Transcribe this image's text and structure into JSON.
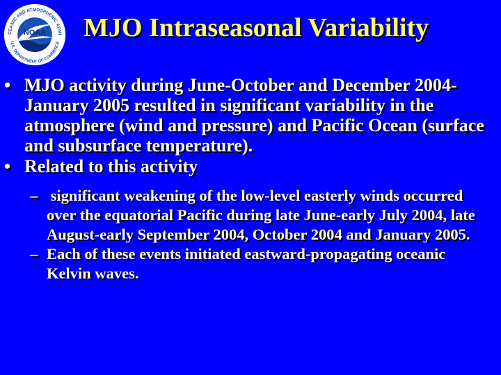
{
  "logo": {
    "text_top": "NATIONAL OCEANIC AND ATMOSPHERIC ADMINISTRATION",
    "text_bottom": "U.S. DEPARTMENT OF COMMERCE",
    "center_text": "NOAA",
    "colors": {
      "ring": "#ffffff",
      "sky": "#1b4fb8",
      "sea": "#0b2a7a",
      "bird": "#ffffff"
    }
  },
  "slide": {
    "title": "MJO Intraseasonal Variability",
    "bullets": [
      {
        "mark": "•",
        "text": "MJO activity during June-October and December 2004-January 2005 resulted in significant variability in the atmosphere (wind and pressure) and Pacific Ocean (surface and subsurface temperature)."
      },
      {
        "mark": "•",
        "text": "Related to this activity"
      }
    ],
    "sub_bullets": [
      {
        "mark": "–",
        "text": " significant weakening of the low-level easterly winds occurred over the equatorial Pacific during late June-early July 2004, late August-early September 2004, October 2004 and January 2005."
      },
      {
        "mark": "–",
        "text": "Each of these events initiated eastward-propagating oceanic Kelvin waves."
      }
    ]
  },
  "colors": {
    "background": "#0000ff",
    "title": "#ffff66",
    "body_text": "#ffffff"
  }
}
